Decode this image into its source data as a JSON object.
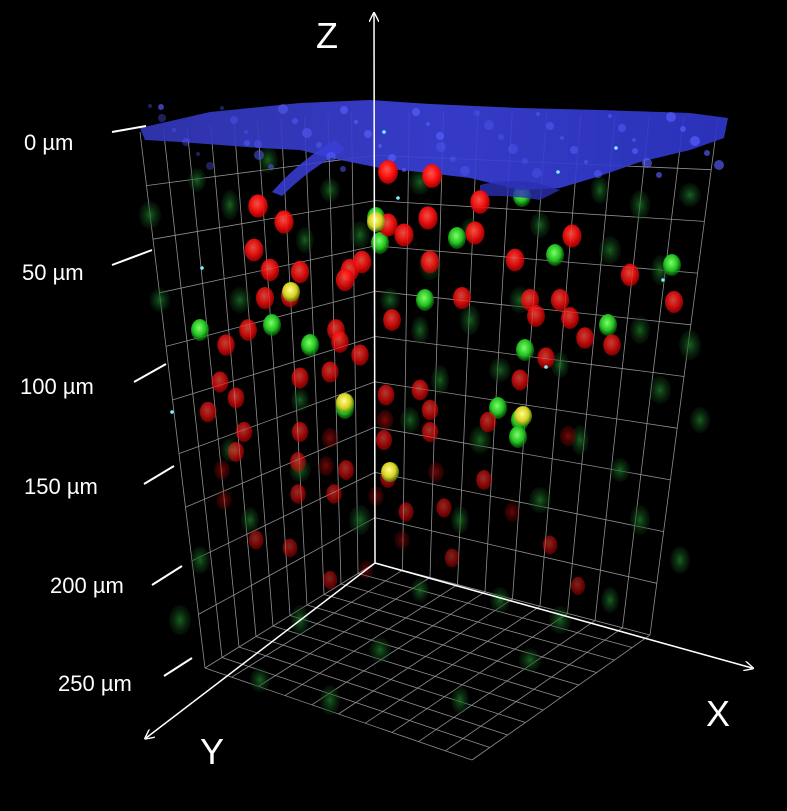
{
  "image": {
    "subject": "3D confocal microscopy volume rendering of fluorescent cells in tissue",
    "background_color": "#000000",
    "channel_colors": {
      "surface": "#3a3fd8",
      "red_cells": "#ff1a1a",
      "green_cells": "#2ecf2e",
      "colocalized": "#e8e020",
      "grid": "#cfcfcf"
    }
  },
  "axes": {
    "z": "Z",
    "x": "X",
    "y": "Y"
  },
  "depth_labels": [
    "0 µm",
    "50 µm",
    "100 µm",
    "150 µm",
    "200 µm",
    "250 µm"
  ]
}
